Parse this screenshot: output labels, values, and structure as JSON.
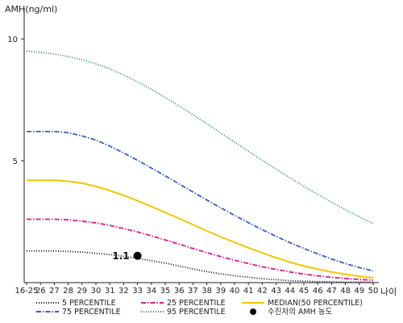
{
  "chart_data": {
    "type": "line",
    "ylabel": "AMH(ng/ml)",
    "xlabel": "나이",
    "ylim": [
      0,
      11
    ],
    "yticks": [
      5,
      10
    ],
    "categories": [
      "16-25",
      "26",
      "27",
      "28",
      "29",
      "30",
      "31",
      "32",
      "33",
      "34",
      "35",
      "36",
      "37",
      "38",
      "39",
      "40",
      "41",
      "42",
      "43",
      "44",
      "45",
      "46",
      "47",
      "48",
      "49",
      "50"
    ],
    "series": [
      {
        "name": "5 PERCENTILE",
        "color": "#0a0a3a",
        "dash": "1,2",
        "values": [
          1.3,
          1.3,
          1.3,
          1.28,
          1.25,
          1.2,
          1.15,
          1.08,
          1.0,
          0.9,
          0.8,
          0.68,
          0.56,
          0.45,
          0.36,
          0.28,
          0.22,
          0.16,
          0.12,
          0.08,
          0.06,
          0.04,
          0.03,
          0.02,
          0.02,
          0.02
        ]
      },
      {
        "name": "25 PERCENTILE",
        "color": "#e0188a",
        "dash": "6,2,1.5,2",
        "values": [
          2.6,
          2.6,
          2.6,
          2.58,
          2.52,
          2.45,
          2.35,
          2.22,
          2.08,
          1.92,
          1.75,
          1.58,
          1.4,
          1.23,
          1.07,
          0.92,
          0.78,
          0.65,
          0.54,
          0.44,
          0.35,
          0.28,
          0.22,
          0.17,
          0.13,
          0.1
        ]
      },
      {
        "name": "MEDIAN(50 PERCENTILE)",
        "color": "#f0c800",
        "dash": "",
        "values": [
          4.2,
          4.2,
          4.2,
          4.16,
          4.08,
          3.95,
          3.78,
          3.58,
          3.36,
          3.12,
          2.88,
          2.63,
          2.38,
          2.12,
          1.88,
          1.65,
          1.43,
          1.22,
          1.02,
          0.84,
          0.68,
          0.55,
          0.44,
          0.34,
          0.26,
          0.2
        ]
      },
      {
        "name": "75 PERCENTILE",
        "color": "#3a5ec0",
        "dash": "6,2,1.5,2",
        "values": [
          6.2,
          6.2,
          6.2,
          6.15,
          6.02,
          5.85,
          5.6,
          5.32,
          5.02,
          4.7,
          4.38,
          4.05,
          3.72,
          3.39,
          3.07,
          2.76,
          2.46,
          2.17,
          1.9,
          1.64,
          1.4,
          1.18,
          0.97,
          0.78,
          0.62,
          0.48
        ]
      },
      {
        "name": "95 PERCENTILE",
        "color": "#2e8b57",
        "dash": "1,2",
        "values": [
          9.5,
          9.45,
          9.38,
          9.28,
          9.15,
          8.98,
          8.77,
          8.52,
          8.24,
          7.93,
          7.6,
          7.25,
          6.89,
          6.52,
          6.14,
          5.77,
          5.39,
          5.02,
          4.66,
          4.3,
          3.95,
          3.62,
          3.3,
          2.99,
          2.7,
          2.42
        ]
      }
    ],
    "marker": {
      "name": "수진자의 AMH 농도",
      "x": "33",
      "y": 1.1,
      "label": "1.1",
      "color": "#000000"
    },
    "legend_placement": "bottom",
    "grid": false
  }
}
